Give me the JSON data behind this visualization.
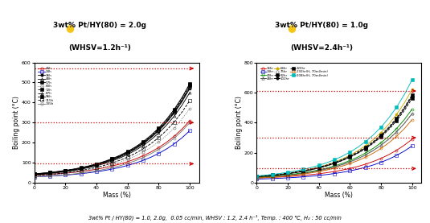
{
  "title1_line1": "3wt% Pt/HY(80) = 2.0g",
  "title1_line2": "(WHSV=1.2h⁻¹)",
  "title2_line1": "3wt% Pt/HY(80) = 1.0g",
  "title2_line2": "(WHSV=2.4h⁻¹)",
  "footer": "3wt% Pt / HY(80) = 1.0, 2.0g,  0.05 cc/min, WHSV : 1.2, 2.4 h⁻¹, Temp. : 400 ℃, H₂ : 50 cc/min",
  "xlabel": "Mass (%)",
  "ylabel": "Boiling point (°C)",
  "hlines1": [
    95,
    300,
    570
  ],
  "hlines2": [
    95,
    300,
    610
  ],
  "ylim1": [
    0,
    600
  ],
  "ylim2": [
    0,
    800
  ],
  "xlim": [
    0,
    105
  ],
  "legend1": [
    {
      "label": "16h",
      "color": "#cc0000",
      "marker": "o",
      "mfc": "none",
      "ls": "-"
    },
    {
      "label": "24h",
      "color": "#0000cc",
      "marker": "s",
      "mfc": "none",
      "ls": "-"
    },
    {
      "label": "36h",
      "color": "#000000",
      "marker": "o",
      "mfc": "#000000",
      "ls": "-"
    },
    {
      "label": "48h",
      "color": "#000000",
      "marker": "^",
      "mfc": "none",
      "ls": "-"
    },
    {
      "label": "57h",
      "color": "#000000",
      "marker": "s",
      "mfc": "#000000",
      "ls": "-"
    },
    {
      "label": "60h",
      "color": "#666666",
      "marker": "o",
      "mfc": "none",
      "ls": ":"
    },
    {
      "label": "72h",
      "color": "#000000",
      "marker": "s",
      "mfc": "#000000",
      "ls": "--"
    },
    {
      "label": "87h",
      "color": "#000000",
      "marker": "^",
      "mfc": "#555555",
      "ls": "-."
    },
    {
      "label": "96h",
      "color": "#000000",
      "marker": "s",
      "mfc": "#000000",
      "ls": "-"
    },
    {
      "label": "115h",
      "color": "#000000",
      "marker": "s",
      "mfc": "none",
      "ls": "--"
    },
    {
      "label": "135h",
      "color": "#777777",
      "marker": "o",
      "mfc": "none",
      "ls": "-"
    }
  ],
  "ends1": [
    310,
    260,
    470,
    450,
    480,
    370,
    490,
    475,
    495,
    410,
    300
  ],
  "starts1": [
    38,
    30,
    42,
    40,
    44,
    34,
    44,
    42,
    45,
    36,
    30
  ],
  "legend2": [
    {
      "label": "16hr",
      "color": "#cc0000",
      "marker": "o",
      "mfc": "none",
      "ls": "-"
    },
    {
      "label": "24hr",
      "color": "#0000cc",
      "marker": "s",
      "mfc": "none",
      "ls": "-"
    },
    {
      "label": "40hr",
      "color": "#008800",
      "marker": "o",
      "mfc": "none",
      "ls": "-"
    },
    {
      "label": "48hr",
      "color": "#444444",
      "marker": "^",
      "mfc": "none",
      "ls": "-"
    },
    {
      "label": "64hr",
      "color": "#ccaa00",
      "marker": "o",
      "mfc": "#ccaa00",
      "ls": "-"
    },
    {
      "label": "75hr",
      "color": "#888888",
      "marker": "o",
      "mfc": "none",
      "ls": ":"
    },
    {
      "label": "92hr",
      "color": "#000000",
      "marker": "s",
      "mfc": "#000000",
      "ls": "--"
    },
    {
      "label": "102hr",
      "color": "#000000",
      "marker": "o",
      "mfc": "#000000",
      "ls": "-"
    },
    {
      "label": "120hr",
      "color": "#000000",
      "marker": "s",
      "mfc": "#000000",
      "ls": "--"
    },
    {
      "label": "192hr(H₂ 70ml/min)",
      "color": "#cc6600",
      "marker": "o",
      "mfc": "none",
      "ls": "-"
    },
    {
      "label": "208hr(H₂ 70ml/min)",
      "color": "#00bbbb",
      "marker": "s",
      "mfc": "#00bbbb",
      "ls": "-"
    }
  ],
  "ends2": [
    290,
    245,
    490,
    460,
    620,
    460,
    560,
    575,
    585,
    420,
    685
  ],
  "starts2": [
    32,
    25,
    36,
    34,
    40,
    30,
    42,
    40,
    44,
    32,
    46
  ],
  "arrow_color": "#cc0000",
  "hline_color": "#cc0000",
  "bg_color": "#ffffff",
  "icon_color": "#f5c518"
}
